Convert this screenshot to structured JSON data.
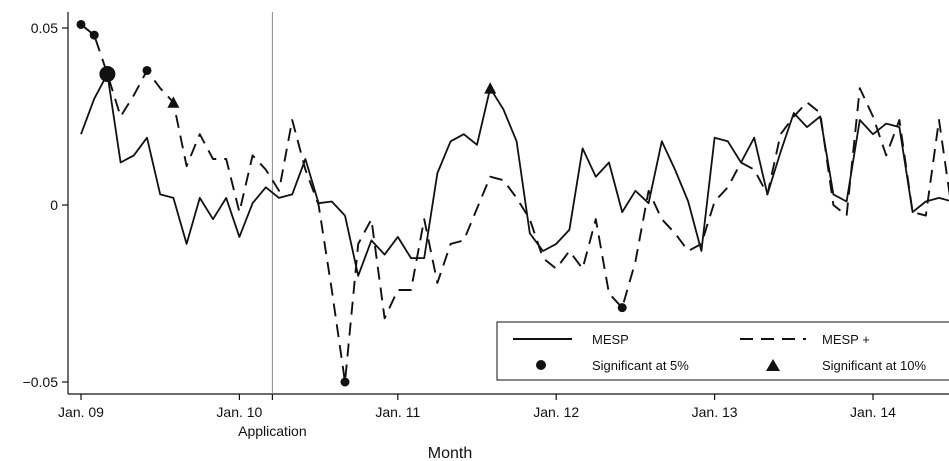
{
  "chart_data": {
    "type": "line",
    "title": "",
    "xlabel": "Month",
    "ylabel": "",
    "x_ticks": [
      "Jan. 09",
      "Jan. 10",
      "Jan. 11",
      "Jan. 12",
      "Jan. 13",
      "Jan. 14"
    ],
    "y_ticks": [
      "−0.05",
      "0",
      "0.05"
    ],
    "ylim": [
      -0.052,
      0.054
    ],
    "xlim": [
      0,
      67
    ],
    "grid": false,
    "legend_position": "bottom-right",
    "vline": {
      "x": 14.5,
      "label": "Application"
    },
    "series": [
      {
        "name": "MESP",
        "style": "solid",
        "color": "#111111",
        "x": [
          0,
          1,
          2,
          3,
          4,
          5,
          6,
          7,
          8,
          9,
          10,
          11,
          12,
          13,
          14,
          15,
          16,
          17,
          18,
          19,
          20,
          21,
          22,
          23,
          24,
          25,
          26,
          27,
          28,
          29,
          30,
          31,
          32,
          33,
          34,
          35,
          36,
          37,
          38,
          39,
          40,
          41,
          42,
          43,
          44,
          45,
          46,
          47,
          48,
          49,
          50,
          51,
          52,
          53,
          54,
          55,
          56,
          57,
          58,
          59,
          60,
          61,
          62,
          63,
          64,
          65,
          66,
          67
        ],
        "y": [
          0.02,
          0.03,
          0.037,
          0.012,
          0.014,
          0.019,
          0.003,
          0.002,
          -0.011,
          0.002,
          -0.004,
          0.002,
          -0.009,
          0.0005,
          0.005,
          0.002,
          0.003,
          0.013,
          0.0005,
          0.001,
          -0.003,
          -0.02,
          -0.01,
          -0.014,
          -0.009,
          -0.015,
          -0.015,
          0.009,
          0.018,
          0.02,
          0.017,
          0.033,
          0.027,
          0.018,
          -0.008,
          -0.013,
          -0.011,
          -0.007,
          0.016,
          0.008,
          0.012,
          -0.002,
          0.004,
          0.0005,
          0.018,
          0.01,
          0.001,
          -0.013,
          0.019,
          0.018,
          0.012,
          0.019,
          0.003,
          0.015,
          0.026,
          0.022,
          0.025,
          0.003,
          0.001,
          0.024,
          0.02,
          0.023,
          0.022,
          -0.002,
          0.001,
          0.002,
          0.001,
          0.002
        ]
      },
      {
        "name": "MESP +",
        "style": "dashed",
        "color": "#111111",
        "x": [
          0,
          1,
          2,
          3,
          4,
          5,
          6,
          7,
          8,
          9,
          10,
          11,
          12,
          13,
          14,
          15,
          16,
          17,
          18,
          19,
          20,
          21,
          22,
          23,
          24,
          25,
          26,
          27,
          28,
          29,
          30,
          31,
          32,
          33,
          34,
          35,
          36,
          37,
          38,
          39,
          40,
          41,
          42,
          43,
          44,
          45,
          46,
          47,
          48,
          49,
          50,
          51,
          52,
          53,
          54,
          55,
          56,
          57,
          58,
          59,
          60,
          61,
          62,
          63,
          64,
          65,
          66,
          67
        ],
        "y": [
          0.051,
          0.048,
          0.037,
          0.025,
          0.031,
          0.038,
          0.033,
          0.029,
          0.011,
          0.02,
          0.013,
          0.013,
          -0.002,
          0.014,
          0.01,
          0.004,
          0.024,
          0.01,
          0.0,
          -0.024,
          -0.05,
          -0.011,
          -0.004,
          -0.032,
          -0.024,
          -0.024,
          -0.004,
          -0.022,
          -0.011,
          -0.01,
          -0.001,
          0.008,
          0.007,
          0.002,
          -0.004,
          -0.015,
          -0.018,
          -0.013,
          -0.018,
          -0.004,
          -0.025,
          -0.029,
          -0.016,
          0.004,
          -0.004,
          -0.008,
          -0.013,
          -0.011,
          0.001,
          0.005,
          0.012,
          0.01,
          0.003,
          0.02,
          0.025,
          0.029,
          0.026,
          0.0,
          -0.003,
          0.033,
          0.025,
          0.014,
          0.024,
          -0.002,
          -0.003,
          0.024,
          -0.002,
          0.001
        ]
      }
    ],
    "markers": [
      {
        "series": "MESP +",
        "x": 0,
        "y": 0.051,
        "shape": "circle",
        "size": "small"
      },
      {
        "series": "MESP +",
        "x": 1,
        "y": 0.048,
        "shape": "circle",
        "size": "small"
      },
      {
        "series": "both",
        "x": 2,
        "y": 0.037,
        "shape": "circle",
        "size": "large"
      },
      {
        "series": "MESP +",
        "x": 5,
        "y": 0.038,
        "shape": "circle",
        "size": "small"
      },
      {
        "series": "MESP +",
        "x": 7,
        "y": 0.029,
        "shape": "triangle",
        "size": "small"
      },
      {
        "series": "MESP +",
        "x": 20,
        "y": -0.05,
        "shape": "circle",
        "size": "small"
      },
      {
        "series": "MESP",
        "x": 31,
        "y": 0.033,
        "shape": "triangle",
        "size": "small"
      },
      {
        "series": "MESP +",
        "x": 41,
        "y": -0.029,
        "shape": "circle",
        "size": "small"
      }
    ],
    "legend": {
      "line1_label": "MESP",
      "line2_label": "MESP +",
      "sig5_label": "Significant at 5%",
      "sig10_label": "Significant at 10%"
    }
  }
}
